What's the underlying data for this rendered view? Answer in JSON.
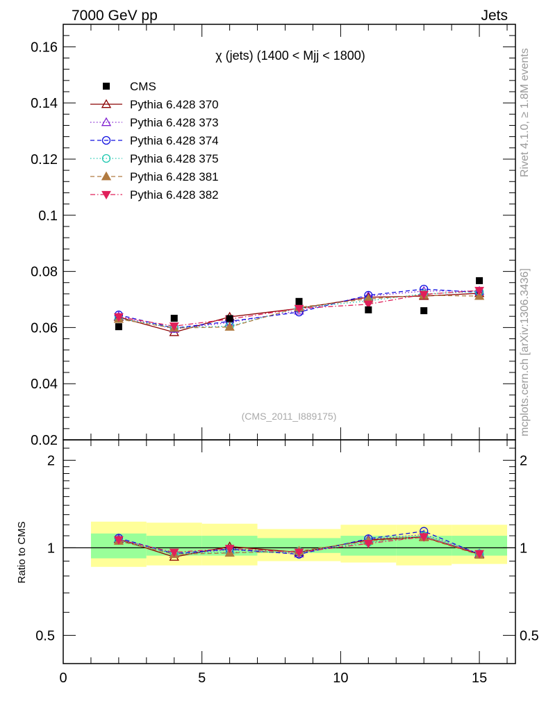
{
  "header": {
    "left": "7000 GeV pp",
    "right": "Jets"
  },
  "side_labels": {
    "rivet": "Rivet 4.1.0, ≥ 1.8M events",
    "mcplots": "mcplots.cern.ch [arXiv:1306.3436]"
  },
  "chart_data": {
    "type": "scatter",
    "title": "χ (jets) (1400 < Mjj < 1800)",
    "watermark": "(CMS_2011_I889175)",
    "xlabel": "",
    "ylabel": "",
    "xlim": [
      0,
      16.3
    ],
    "ylim": [
      0.02,
      0.168
    ],
    "y_ticks": [
      0.02,
      0.04,
      0.06,
      0.08,
      0.1,
      0.12,
      0.14,
      0.16
    ],
    "y_tick_labels": [
      "0.02",
      "0.04",
      "0.06",
      "0.08",
      "0.1",
      "0.12",
      "0.14",
      "0.16"
    ],
    "x_ticks": [
      0,
      5,
      10,
      15
    ],
    "x_tick_labels": [
      "0",
      "5",
      "10",
      "15"
    ],
    "x": [
      2,
      4,
      6,
      8.5,
      11,
      13,
      15
    ],
    "bin_edges": [
      1,
      3,
      5,
      7,
      10,
      12,
      14,
      16
    ],
    "data": {
      "name": "CMS",
      "values": [
        0.0603,
        0.0633,
        0.0632,
        0.0693,
        0.0663,
        0.066,
        0.0767
      ],
      "color": "#000000"
    },
    "series": [
      {
        "name": "Pythia 6.428 370",
        "color": "#8b0000",
        "marker": "triangle-open",
        "dash": "solid",
        "values": [
          0.0637,
          0.0583,
          0.0638,
          0.0668,
          0.0708,
          0.0712,
          0.0722
        ]
      },
      {
        "name": "Pythia 6.428 373",
        "color": "#8020d0",
        "marker": "triangle-open",
        "dash": "dotted",
        "values": [
          0.064,
          0.0595,
          0.0618,
          0.066,
          0.0712,
          0.073,
          0.073
        ]
      },
      {
        "name": "Pythia 6.428 374",
        "color": "#1010e0",
        "marker": "circle-open",
        "dash": "dashed",
        "values": [
          0.0645,
          0.0598,
          0.0622,
          0.0655,
          0.0715,
          0.0737,
          0.0725
        ]
      },
      {
        "name": "Pythia 6.428 375",
        "color": "#20c8b0",
        "marker": "circle-open",
        "dash": "dotted",
        "values": [
          0.0632,
          0.06,
          0.0605,
          0.067,
          0.0695,
          0.072,
          0.0728
        ]
      },
      {
        "name": "Pythia 6.428 381",
        "color": "#b07a40",
        "marker": "triangle-filled",
        "dash": "dashed",
        "values": [
          0.063,
          0.0598,
          0.0602,
          0.0672,
          0.0702,
          0.0715,
          0.0712
        ]
      },
      {
        "name": "Pythia 6.428 382",
        "color": "#e0205a",
        "marker": "triangle-down-filled",
        "dash": "dashdot",
        "values": [
          0.0638,
          0.0605,
          0.063,
          0.0668,
          0.0683,
          0.0718,
          0.0732
        ]
      }
    ],
    "ratio": {
      "ylabel": "Ratio to CMS",
      "ylim": [
        0.4,
        2.35
      ],
      "y_ticks": [
        0.5,
        1,
        2
      ],
      "y_tick_labels": [
        "0.5",
        "1",
        "2"
      ],
      "band_inner": [
        [
          0.92,
          1.12
        ],
        [
          0.94,
          1.1
        ],
        [
          0.94,
          1.1
        ],
        [
          0.96,
          1.08
        ],
        [
          0.94,
          1.1
        ],
        [
          0.94,
          1.1
        ],
        [
          0.94,
          1.1
        ]
      ],
      "band_outer": [
        [
          0.86,
          1.23
        ],
        [
          0.87,
          1.22
        ],
        [
          0.87,
          1.21
        ],
        [
          0.9,
          1.16
        ],
        [
          0.89,
          1.2
        ],
        [
          0.87,
          1.2
        ],
        [
          0.88,
          1.2
        ]
      ],
      "series": [
        [
          1.07,
          0.93,
          1.01,
          0.965,
          1.065,
          1.09,
          0.95
        ],
        [
          1.075,
          0.95,
          0.985,
          0.955,
          1.07,
          1.11,
          0.955
        ],
        [
          1.08,
          0.955,
          0.99,
          0.95,
          1.075,
          1.14,
          0.95
        ],
        [
          1.06,
          0.955,
          0.965,
          0.97,
          1.045,
          1.1,
          0.955
        ],
        [
          1.055,
          0.95,
          0.96,
          0.975,
          1.055,
          1.085,
          0.945
        ],
        [
          1.065,
          0.965,
          0.995,
          0.965,
          1.035,
          1.09,
          0.955
        ]
      ]
    }
  }
}
